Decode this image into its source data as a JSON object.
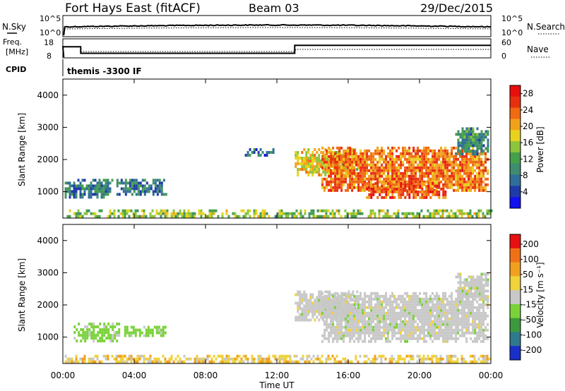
{
  "header": {
    "station": "Fort Hays East (fitACF)",
    "beam": "Beam 03",
    "date": "29/Dec/2015"
  },
  "noise_panel": {
    "left_label": "N.Sky",
    "right_label": "N.Search",
    "left_ticks": [
      "10^5",
      "10^0"
    ],
    "right_ticks": [
      "10^5",
      "10^0"
    ]
  },
  "freq_panel": {
    "label_line1": "Freq.",
    "label_line2": "[MHz]",
    "cpid_label": "CPID",
    "right_label": "Nave",
    "left_ticks": [
      "18",
      "8"
    ],
    "right_ticks": [
      "60",
      "0"
    ],
    "cpid_text": "themis -3300 IF",
    "freq_steps_mhz": [
      {
        "t": 0.0,
        "f": 13.8
      },
      {
        "t": 1.0,
        "f": 10.4
      },
      {
        "t": 13.0,
        "f": 14.6
      },
      {
        "t": 24.0,
        "f": 14.6
      }
    ]
  },
  "chart_data": [
    {
      "type": "heatmap",
      "name": "power",
      "ylabel": "Slant Range [km]",
      "ytick_labels": [
        "1000",
        "2000",
        "3000",
        "4000"
      ],
      "yticks": [
        1000,
        2000,
        3000,
        4000
      ],
      "ylim": [
        180,
        4500
      ],
      "colorbar_label": "Power [dB]",
      "colorbar_ticks": [
        "4",
        "8",
        "12",
        "16",
        "20",
        "24",
        "28"
      ],
      "colorbar_colors": [
        "#1010f0",
        "#1f3aa8",
        "#2f6e98",
        "#3f8c70",
        "#46a04a",
        "#8cc43c",
        "#e8d21e",
        "#f2a21a",
        "#f06a12",
        "#e83010",
        "#e80e0e"
      ],
      "features": [
        {
          "tStart": 0.1,
          "tEnd": 24.0,
          "rLo": 190,
          "rHi": 450,
          "level": 0.5
        },
        {
          "tStart": 0.1,
          "tEnd": 2.8,
          "rLo": 800,
          "rHi": 1400,
          "level": 0.25
        },
        {
          "tStart": 3.0,
          "tEnd": 5.8,
          "rLo": 900,
          "rHi": 1400,
          "level": 0.25
        },
        {
          "tStart": 10.2,
          "tEnd": 11.8,
          "rLo": 2100,
          "rHi": 2350,
          "level": 0.2
        },
        {
          "tStart": 13.0,
          "tEnd": 16.5,
          "rLo": 1550,
          "rHi": 2350,
          "level": 0.62
        },
        {
          "tStart": 14.5,
          "tEnd": 23.8,
          "rLo": 1000,
          "rHi": 2400,
          "level": 0.78
        },
        {
          "tStart": 17.0,
          "tEnd": 21.5,
          "rLo": 800,
          "rHi": 1300,
          "level": 0.85
        },
        {
          "tStart": 22.0,
          "tEnd": 23.9,
          "rLo": 2200,
          "rHi": 3000,
          "level": 0.3
        }
      ]
    },
    {
      "type": "heatmap",
      "name": "velocity",
      "ylabel": "Slant Range [km]",
      "ytick_labels": [
        "1000",
        "2000",
        "3000",
        "4000"
      ],
      "yticks": [
        1000,
        2000,
        3000,
        4000
      ],
      "ylim": [
        180,
        4500
      ],
      "colorbar_label": "Velocity [m s⁻¹]",
      "colorbar_ticks": [
        "200",
        "100",
        "50",
        "15",
        "-15",
        "-50",
        "-100",
        "-200"
      ],
      "colorbar_colors": [
        "#1a2fc8",
        "#2e7a8c",
        "#3c9a3c",
        "#7ad23a",
        "#c8c8c8",
        "#f0d23a",
        "#f0a020",
        "#f07018",
        "#e81010"
      ],
      "features": [
        {
          "tStart": 0.1,
          "tEnd": 24.0,
          "rLo": 190,
          "rHi": 450,
          "level": 0.5
        },
        {
          "tStart": 0.6,
          "tEnd": 3.2,
          "rLo": 900,
          "rHi": 1450,
          "level": 0.2
        },
        {
          "tStart": 3.2,
          "tEnd": 5.8,
          "rLo": 1000,
          "rHi": 1350,
          "level": 0.2
        },
        {
          "tStart": 13.0,
          "tEnd": 16.5,
          "rLo": 1550,
          "rHi": 2450,
          "level": 0.6
        },
        {
          "tStart": 14.5,
          "tEnd": 23.8,
          "rLo": 900,
          "rHi": 2400,
          "level": 0.75
        },
        {
          "tStart": 22.0,
          "tEnd": 23.9,
          "rLo": 2200,
          "rHi": 3000,
          "level": 0.3
        }
      ]
    }
  ],
  "x_axis": {
    "label": "Time UT",
    "ticks": [
      "00:00",
      "04:00",
      "08:00",
      "12:00",
      "16:00",
      "20:00",
      "00:00"
    ],
    "tick_hours": [
      0,
      4,
      8,
      12,
      16,
      20,
      24
    ]
  }
}
